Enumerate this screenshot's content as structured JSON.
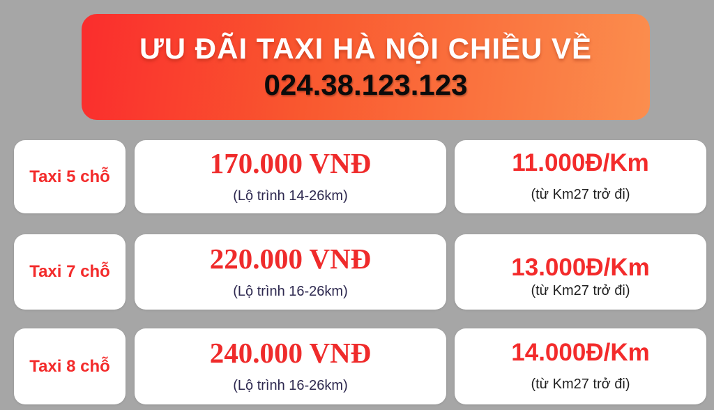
{
  "banner": {
    "title": "ƯU ĐÃI TAXI HÀ NỘI CHIỀU VỀ",
    "phone": "024.38.123.123"
  },
  "colors": {
    "background": "#a6a6a6",
    "banner_gradient_start": "#fa2d2d",
    "banner_gradient_end": "#fb8e4e",
    "accent_red": "#f32b2b",
    "price_red": "#ef2b2b",
    "note_navy": "#2e2950",
    "note_dark": "#1f1f1f",
    "card_background": "#ffffff"
  },
  "rows": [
    {
      "vehicle": "Taxi 5 chỗ",
      "price": "170.000 VNĐ",
      "price_note": "(Lộ trình 14-26km)",
      "per_km": "11.000Đ/Km",
      "per_km_note": "(từ Km27 trở đi)"
    },
    {
      "vehicle": "Taxi 7 chỗ",
      "price": "220.000 VNĐ",
      "price_note": "(Lộ trình 16-26km)",
      "per_km": "13.000Đ/Km",
      "per_km_note": "(từ Km27 trở đi)"
    },
    {
      "vehicle": "Taxi 8 chỗ",
      "price": "240.000 VNĐ",
      "price_note": "(Lộ trình 16-26km)",
      "per_km": "14.000Đ/Km",
      "per_km_note": "(từ Km27 trở đi)"
    }
  ]
}
